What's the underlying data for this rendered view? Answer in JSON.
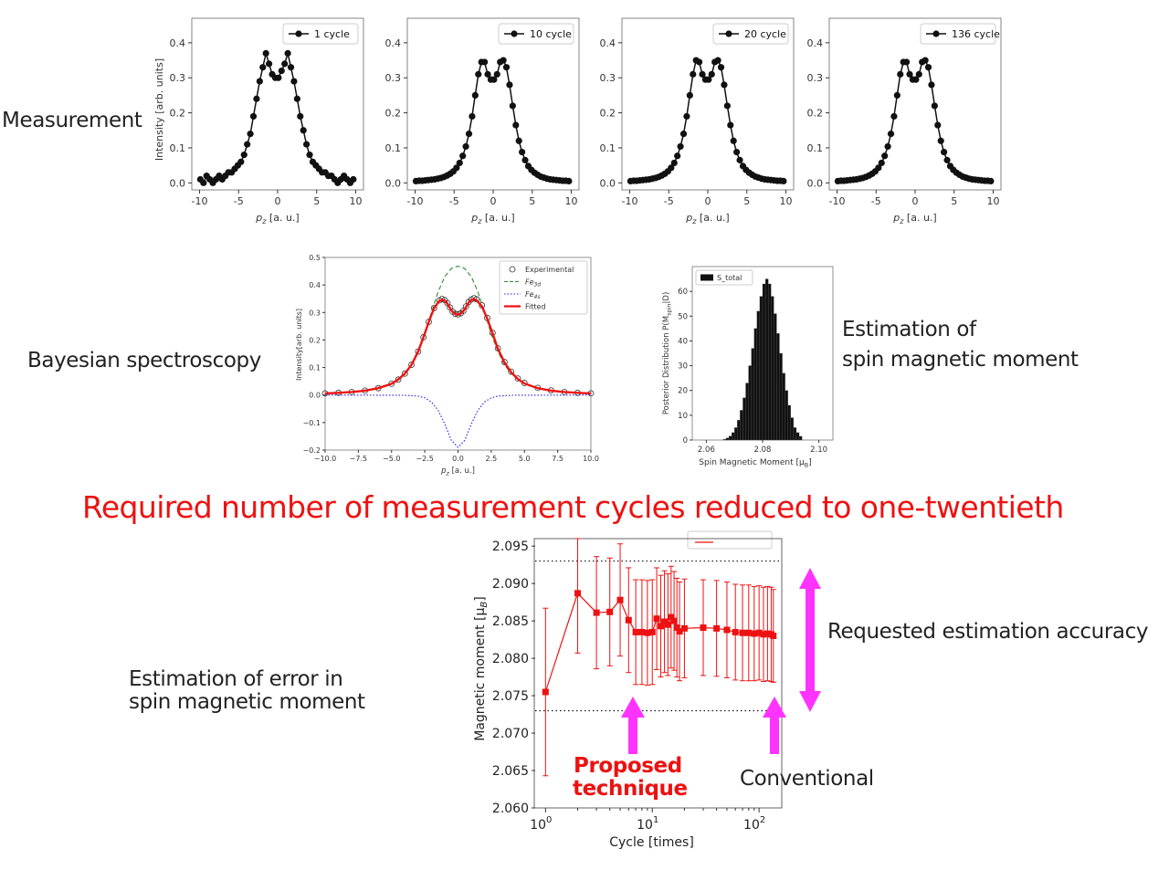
{
  "labels": {
    "measurement": "Measurement",
    "bayesian": "Bayesian spectroscopy",
    "estimation_line1": "Estimation of",
    "estimation_line2": "spin magnetic moment",
    "headline": "Required number of measurement cycles reduced to one-twentieth",
    "requested_accuracy": "Requested estimation accuracy",
    "error_line1": "Estimation of error in",
    "error_line2": "spin magnetic moment",
    "proposed_line1": "Proposed",
    "proposed_line2": "technique",
    "conventional": "Conventional"
  },
  "chart_data": [
    {
      "type": "scatter",
      "legend": "1 cycle",
      "xlabel": "p_z [a. u.]",
      "ylabel": "Intensity [arb. units]",
      "xlim": [
        -11,
        11
      ],
      "ylim": [
        -0.02,
        0.47
      ],
      "xticks": [
        "-10",
        "-5",
        "0",
        "5",
        "10"
      ],
      "yticks": [
        "0.0",
        "0.1",
        "0.2",
        "0.3",
        "0.4"
      ],
      "x": [
        -9.9,
        -9.5,
        -9.1,
        -8.7,
        -8.3,
        -7.9,
        -7.5,
        -7.1,
        -6.7,
        -6.3,
        -5.9,
        -5.5,
        -5.1,
        -4.7,
        -4.3,
        -3.9,
        -3.5,
        -3.1,
        -2.7,
        -2.3,
        -1.9,
        -1.5,
        -1.1,
        -0.7,
        -0.3,
        0.1,
        0.5,
        0.9,
        1.3,
        1.7,
        2.1,
        2.5,
        2.9,
        3.3,
        3.7,
        4.1,
        4.5,
        4.9,
        5.3,
        5.7,
        6.1,
        6.5,
        6.9,
        7.3,
        7.7,
        8.1,
        8.5,
        8.9,
        9.3,
        9.7
      ],
      "y": [
        0.01,
        0.0,
        0.02,
        0.01,
        0.0,
        0.01,
        0.02,
        0.01,
        0.02,
        0.03,
        0.03,
        0.04,
        0.05,
        0.06,
        0.08,
        0.11,
        0.14,
        0.19,
        0.24,
        0.29,
        0.33,
        0.37,
        0.34,
        0.31,
        0.3,
        0.3,
        0.32,
        0.34,
        0.37,
        0.33,
        0.29,
        0.24,
        0.19,
        0.15,
        0.11,
        0.08,
        0.06,
        0.05,
        0.04,
        0.03,
        0.03,
        0.02,
        0.02,
        0.01,
        0.0,
        0.01,
        0.02,
        0.01,
        0.0,
        0.01
      ]
    },
    {
      "type": "scatter",
      "legend": "10 cycle",
      "xlabel": "p_z [a. u.]",
      "xlim": [
        -11,
        11
      ],
      "ylim": [
        -0.02,
        0.47
      ],
      "xticks": [
        "-10",
        "-5",
        "0",
        "5",
        "10"
      ],
      "yticks": [
        "0.0",
        "0.1",
        "0.2",
        "0.3",
        "0.4"
      ],
      "x": [
        -9.9,
        -9.5,
        -9.1,
        -8.7,
        -8.3,
        -7.9,
        -7.5,
        -7.1,
        -6.7,
        -6.3,
        -5.9,
        -5.5,
        -5.1,
        -4.7,
        -4.3,
        -3.9,
        -3.5,
        -3.1,
        -2.7,
        -2.3,
        -1.9,
        -1.5,
        -1.1,
        -0.7,
        -0.3,
        0.1,
        0.5,
        0.9,
        1.3,
        1.7,
        2.1,
        2.5,
        2.9,
        3.3,
        3.7,
        4.1,
        4.5,
        4.9,
        5.3,
        5.7,
        6.1,
        6.5,
        6.9,
        7.3,
        7.7,
        8.1,
        8.5,
        8.9,
        9.3,
        9.7
      ],
      "y": [
        0.005,
        0.006,
        0.006,
        0.007,
        0.008,
        0.009,
        0.01,
        0.012,
        0.014,
        0.017,
        0.021,
        0.026,
        0.033,
        0.043,
        0.057,
        0.077,
        0.104,
        0.14,
        0.19,
        0.25,
        0.31,
        0.345,
        0.345,
        0.31,
        0.295,
        0.295,
        0.31,
        0.345,
        0.35,
        0.33,
        0.28,
        0.22,
        0.165,
        0.12,
        0.088,
        0.065,
        0.048,
        0.037,
        0.029,
        0.023,
        0.018,
        0.015,
        0.012,
        0.01,
        0.009,
        0.008,
        0.007,
        0.006,
        0.006,
        0.005
      ]
    },
    {
      "type": "scatter",
      "legend": "20 cycle",
      "xlabel": "p_z [a. u.]",
      "xlim": [
        -11,
        11
      ],
      "ylim": [
        -0.02,
        0.47
      ],
      "xticks": [
        "-10",
        "-5",
        "0",
        "5",
        "10"
      ],
      "yticks": [
        "0.0",
        "0.1",
        "0.2",
        "0.3",
        "0.4"
      ],
      "x": [
        -9.9,
        -9.5,
        -9.1,
        -8.7,
        -8.3,
        -7.9,
        -7.5,
        -7.1,
        -6.7,
        -6.3,
        -5.9,
        -5.5,
        -5.1,
        -4.7,
        -4.3,
        -3.9,
        -3.5,
        -3.1,
        -2.7,
        -2.3,
        -1.9,
        -1.5,
        -1.1,
        -0.7,
        -0.3,
        0.1,
        0.5,
        0.9,
        1.3,
        1.7,
        2.1,
        2.5,
        2.9,
        3.3,
        3.7,
        4.1,
        4.5,
        4.9,
        5.3,
        5.7,
        6.1,
        6.5,
        6.9,
        7.3,
        7.7,
        8.1,
        8.5,
        8.9,
        9.3,
        9.7
      ],
      "y": [
        0.005,
        0.006,
        0.006,
        0.007,
        0.008,
        0.009,
        0.01,
        0.012,
        0.014,
        0.017,
        0.021,
        0.026,
        0.033,
        0.043,
        0.057,
        0.077,
        0.104,
        0.14,
        0.19,
        0.25,
        0.31,
        0.35,
        0.345,
        0.31,
        0.295,
        0.295,
        0.31,
        0.345,
        0.35,
        0.33,
        0.28,
        0.22,
        0.165,
        0.12,
        0.088,
        0.065,
        0.048,
        0.037,
        0.029,
        0.023,
        0.018,
        0.015,
        0.012,
        0.01,
        0.009,
        0.008,
        0.007,
        0.006,
        0.006,
        0.005
      ]
    },
    {
      "type": "scatter",
      "legend": "136 cycle",
      "xlabel": "p_z [a. u.]",
      "xlim": [
        -11,
        11
      ],
      "ylim": [
        -0.02,
        0.47
      ],
      "xticks": [
        "-10",
        "-5",
        "0",
        "5",
        "10"
      ],
      "yticks": [
        "0.0",
        "0.1",
        "0.2",
        "0.3",
        "0.4"
      ],
      "x": [
        -9.9,
        -9.5,
        -9.1,
        -8.7,
        -8.3,
        -7.9,
        -7.5,
        -7.1,
        -6.7,
        -6.3,
        -5.9,
        -5.5,
        -5.1,
        -4.7,
        -4.3,
        -3.9,
        -3.5,
        -3.1,
        -2.7,
        -2.3,
        -1.9,
        -1.5,
        -1.1,
        -0.7,
        -0.3,
        0.1,
        0.5,
        0.9,
        1.3,
        1.7,
        2.1,
        2.5,
        2.9,
        3.3,
        3.7,
        4.1,
        4.5,
        4.9,
        5.3,
        5.7,
        6.1,
        6.5,
        6.9,
        7.3,
        7.7,
        8.1,
        8.5,
        8.9,
        9.3,
        9.7
      ],
      "y": [
        0.005,
        0.006,
        0.006,
        0.007,
        0.008,
        0.009,
        0.01,
        0.012,
        0.014,
        0.017,
        0.021,
        0.026,
        0.033,
        0.043,
        0.057,
        0.077,
        0.104,
        0.14,
        0.19,
        0.25,
        0.31,
        0.345,
        0.345,
        0.31,
        0.295,
        0.295,
        0.31,
        0.345,
        0.35,
        0.33,
        0.28,
        0.22,
        0.165,
        0.12,
        0.088,
        0.065,
        0.048,
        0.037,
        0.029,
        0.023,
        0.018,
        0.015,
        0.012,
        0.01,
        0.009,
        0.008,
        0.007,
        0.006,
        0.006,
        0.005
      ]
    },
    {
      "type": "line",
      "xlabel": "p_z [a. u.]",
      "ylabel": "Intensity[arb. units]",
      "xlim": [
        -10,
        10
      ],
      "ylim": [
        -0.2,
        0.5
      ],
      "xticks": [
        "−10.0",
        "−7.5",
        "−5.0",
        "−2.5",
        "0.0",
        "2.5",
        "5.0",
        "7.5",
        "10.0"
      ],
      "yticks": [
        "−0.2",
        "−0.1",
        "0.0",
        "0.1",
        "0.2",
        "0.3",
        "0.4",
        "0.5"
      ],
      "series": [
        {
          "name": "Experimental",
          "style": "open-circle",
          "color": "#333333",
          "x": [
            -10,
            -9,
            -8,
            -7,
            -6,
            -5,
            -4.5,
            -4,
            -3.5,
            -3,
            -2.6,
            -2.2,
            -1.8,
            -1.4,
            -1.2,
            -1.0,
            -0.8,
            -0.6,
            -0.4,
            -0.2,
            0,
            0.2,
            0.4,
            0.6,
            0.8,
            1.0,
            1.2,
            1.4,
            1.8,
            2.2,
            2.6,
            3,
            3.5,
            4,
            4.5,
            5,
            6,
            7,
            8,
            9,
            10
          ],
          "y": [
            0.006,
            0.008,
            0.011,
            0.016,
            0.025,
            0.041,
            0.056,
            0.078,
            0.11,
            0.158,
            0.21,
            0.266,
            0.316,
            0.344,
            0.349,
            0.345,
            0.334,
            0.318,
            0.303,
            0.295,
            0.293,
            0.297,
            0.306,
            0.322,
            0.338,
            0.347,
            0.352,
            0.348,
            0.326,
            0.28,
            0.226,
            0.17,
            0.12,
            0.085,
            0.06,
            0.044,
            0.026,
            0.017,
            0.011,
            0.008,
            0.006
          ]
        },
        {
          "name": "Fe3d",
          "style": "dashed",
          "color": "#2e8b2e",
          "x": [
            -10,
            -9,
            -8,
            -7,
            -6,
            -5,
            -4,
            -3.5,
            -3,
            -2.5,
            -2,
            -1.5,
            -1,
            -0.5,
            0,
            0.5,
            1,
            1.5,
            2,
            2.5,
            3,
            3.5,
            4,
            5,
            6,
            7,
            8,
            9,
            10
          ],
          "y": [
            0.006,
            0.008,
            0.011,
            0.016,
            0.025,
            0.041,
            0.078,
            0.11,
            0.158,
            0.222,
            0.3,
            0.375,
            0.43,
            0.46,
            0.468,
            0.46,
            0.43,
            0.375,
            0.3,
            0.222,
            0.158,
            0.11,
            0.078,
            0.041,
            0.025,
            0.016,
            0.011,
            0.008,
            0.006
          ]
        },
        {
          "name": "Fe4s",
          "style": "dotted",
          "color": "#2020dd",
          "x": [
            -10,
            -4,
            -3,
            -2.5,
            -2,
            -1.5,
            -1,
            -0.5,
            0,
            0.5,
            1,
            1.5,
            2,
            2.5,
            3,
            4,
            10
          ],
          "y": [
            0.0,
            -0.001,
            -0.004,
            -0.01,
            -0.025,
            -0.055,
            -0.105,
            -0.165,
            -0.19,
            -0.165,
            -0.105,
            -0.055,
            -0.025,
            -0.01,
            -0.004,
            -0.001,
            0.0
          ]
        },
        {
          "name": "Fitted",
          "style": "solid",
          "color": "#ee1111",
          "x": [
            -10,
            -9,
            -8,
            -7,
            -6,
            -5,
            -4.5,
            -4,
            -3.5,
            -3,
            -2.6,
            -2.2,
            -1.8,
            -1.4,
            -1.2,
            -1.0,
            -0.8,
            -0.6,
            -0.4,
            -0.2,
            0,
            0.2,
            0.4,
            0.6,
            0.8,
            1.0,
            1.2,
            1.4,
            1.8,
            2.2,
            2.6,
            3,
            3.5,
            4,
            4.5,
            5,
            6,
            7,
            8,
            9,
            10
          ],
          "y": [
            0.006,
            0.008,
            0.011,
            0.016,
            0.025,
            0.041,
            0.056,
            0.078,
            0.11,
            0.158,
            0.21,
            0.266,
            0.316,
            0.342,
            0.346,
            0.343,
            0.332,
            0.316,
            0.302,
            0.294,
            0.292,
            0.296,
            0.305,
            0.32,
            0.336,
            0.345,
            0.348,
            0.344,
            0.322,
            0.278,
            0.224,
            0.168,
            0.118,
            0.083,
            0.058,
            0.042,
            0.025,
            0.016,
            0.011,
            0.008,
            0.006
          ]
        }
      ],
      "legend_labels": [
        "Experimental",
        "Fe",
        "3d",
        "Fe",
        "4s",
        "Fitted"
      ]
    },
    {
      "type": "bar",
      "legend": "S_total",
      "xlabel": "Spin Magnetic Moment [μ",
      "xlabel_sub": "B",
      "xlabel_end": "]",
      "ylabel": "Posterior Distribution P(M",
      "ylabel_sub": "spin",
      "ylabel_end": "|D)",
      "xlim": [
        2.055,
        2.105
      ],
      "ylim": [
        0,
        70
      ],
      "xticks": [
        "2.06",
        "2.08",
        "2.10"
      ],
      "yticks": [
        "0",
        "10",
        "20",
        "30",
        "40",
        "50",
        "60"
      ],
      "bin_centers": [
        2.0665,
        2.0675,
        2.0685,
        2.0695,
        2.0705,
        2.0715,
        2.0725,
        2.0735,
        2.0745,
        2.0755,
        2.0765,
        2.0775,
        2.0785,
        2.0795,
        2.0805,
        2.0815,
        2.0825,
        2.0835,
        2.0845,
        2.0855,
        2.0865,
        2.0875,
        2.0885,
        2.0895,
        2.0905,
        2.0915,
        2.0925,
        2.0935
      ],
      "values": [
        0.3,
        0.8,
        1.6,
        3,
        5,
        8,
        12,
        17,
        23,
        30,
        37,
        45,
        52,
        58,
        63,
        65,
        63,
        58,
        51,
        43,
        35,
        27,
        20,
        14,
        9,
        5,
        3,
        1.5
      ]
    },
    {
      "type": "line",
      "xlabel": "Cycle [times]",
      "ylabel": "Magnetic moment [μ",
      "ylabel_sub": "B",
      "ylabel_end": "]",
      "xscale": "log",
      "xlim": [
        0.8,
        160
      ],
      "ylim": [
        2.06,
        2.096
      ],
      "xtick_base": "10",
      "xtick_exps": [
        "0",
        "1",
        "2"
      ],
      "xtick_values": [
        1,
        10,
        100
      ],
      "yticks": [
        "2.060",
        "2.065",
        "2.070",
        "2.075",
        "2.080",
        "2.085",
        "2.090",
        "2.095"
      ],
      "hlines": [
        2.093,
        2.073
      ],
      "series": [
        {
          "name": "",
          "color": "#ee1111",
          "x": [
            1,
            2,
            3,
            4,
            5,
            6,
            7,
            8,
            9,
            10,
            11,
            12,
            13,
            14,
            15,
            16,
            17,
            18,
            20,
            30,
            40,
            50,
            60,
            70,
            80,
            90,
            100,
            110,
            120,
            130,
            136
          ],
          "y": [
            2.0755,
            2.0887,
            2.0861,
            2.0862,
            2.0878,
            2.0851,
            2.0835,
            2.0835,
            2.0834,
            2.0835,
            2.0853,
            2.0843,
            2.0849,
            2.0845,
            2.0855,
            2.085,
            2.0841,
            2.0836,
            2.084,
            2.0841,
            2.084,
            2.0838,
            2.0835,
            2.0834,
            2.0834,
            2.0833,
            2.0834,
            2.0832,
            2.0833,
            2.0832,
            2.083
          ],
          "err": [
            0.0112,
            0.008,
            0.0075,
            0.0072,
            0.0075,
            0.007,
            0.007,
            0.007,
            0.007,
            0.007,
            0.0068,
            0.0068,
            0.0068,
            0.0068,
            0.0068,
            0.0066,
            0.0066,
            0.0066,
            0.0066,
            0.0064,
            0.0064,
            0.0064,
            0.0064,
            0.0064,
            0.0064,
            0.0063,
            0.0063,
            0.0063,
            0.0063,
            0.0063,
            0.0062
          ]
        }
      ]
    }
  ]
}
